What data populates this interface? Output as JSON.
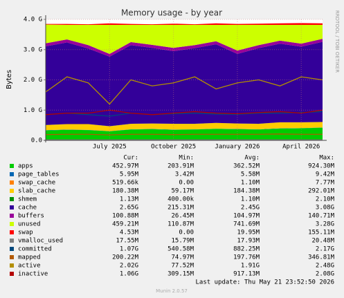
{
  "chart_data": {
    "type": "stacked-area",
    "title": "Memory usage - by year",
    "y_label": "Bytes",
    "side_text": "RRDTOOL / TOBI OETIKER",
    "x": [
      "2025-04",
      "2025-05",
      "2025-06",
      "2025-07",
      "2025-08",
      "2025-09",
      "2025-10",
      "2025-11",
      "2025-12",
      "2026-01",
      "2026-02",
      "2026-03",
      "2026-04",
      "2026-05"
    ],
    "xlim": [
      "2025-04",
      "2026-05"
    ],
    "xticks": [
      {
        "value": "2025-07",
        "label": "July 2025"
      },
      {
        "value": "2025-10",
        "label": "October 2025"
      },
      {
        "value": "2026-01",
        "label": "January 2026"
      },
      {
        "value": "2026-04",
        "label": "April 2026"
      }
    ],
    "ylim": [
      0,
      4
    ],
    "yticks": [
      {
        "value": 0,
        "label": "0.0"
      },
      {
        "value": 1,
        "label": "1.0 G"
      },
      {
        "value": 2,
        "label": "2.0 G"
      },
      {
        "value": 3,
        "label": "3.0 G"
      },
      {
        "value": 4,
        "label": "4.0 G"
      }
    ],
    "grid": true,
    "stats_headers": [
      "Cur:",
      "Min:",
      "Avg:",
      "Max:"
    ],
    "series": [
      {
        "name": "apps",
        "kind": "area",
        "color": "#00cc00",
        "values": [
          0.33,
          0.35,
          0.34,
          0.3,
          0.36,
          0.37,
          0.35,
          0.36,
          0.38,
          0.37,
          0.36,
          0.39,
          0.4,
          0.42
        ],
        "stats": [
          "452.97M",
          "203.91M",
          "362.52M",
          "924.30M"
        ]
      },
      {
        "name": "page_tables",
        "kind": "area",
        "color": "#0066b3",
        "values": [
          0.006,
          0.006,
          0.006,
          0.006,
          0.006,
          0.006,
          0.006,
          0.006,
          0.006,
          0.006,
          0.006,
          0.006,
          0.006,
          0.006
        ],
        "stats": [
          "5.95M",
          "3.42M",
          "5.58M",
          "9.42M"
        ]
      },
      {
        "name": "swap_cache",
        "kind": "area",
        "color": "#ff8000",
        "values": [
          0.001,
          0.001,
          0.001,
          0.001,
          0.001,
          0.001,
          0.001,
          0.001,
          0.001,
          0.001,
          0.001,
          0.001,
          0.001,
          0.001
        ],
        "stats": [
          "519.66k",
          "0.00",
          "1.10M",
          "7.77M"
        ]
      },
      {
        "name": "slab_cache",
        "kind": "area",
        "color": "#ffcc00",
        "values": [
          0.17,
          0.18,
          0.19,
          0.16,
          0.18,
          0.18,
          0.19,
          0.18,
          0.19,
          0.18,
          0.18,
          0.2,
          0.19,
          0.18
        ],
        "stats": [
          "180.38M",
          "59.17M",
          "184.38M",
          "292.01M"
        ]
      },
      {
        "name": "shmem",
        "kind": "area",
        "color": "#008f00",
        "values": [
          0.001,
          0.001,
          0.001,
          0.001,
          0.001,
          0.001,
          0.001,
          0.001,
          0.001,
          0.001,
          0.001,
          0.001,
          0.001,
          0.001
        ],
        "stats": [
          "1.13M",
          "400.00k",
          "1.10M",
          "2.10M"
        ]
      },
      {
        "name": "cache",
        "kind": "area",
        "color": "#330099",
        "values": [
          2.6,
          2.7,
          2.5,
          2.3,
          2.6,
          2.5,
          2.4,
          2.5,
          2.6,
          2.3,
          2.5,
          2.6,
          2.5,
          2.65
        ],
        "stats": [
          "2.65G",
          "215.31M",
          "2.45G",
          "3.08G"
        ]
      },
      {
        "name": "buffers",
        "kind": "area",
        "color": "#990099",
        "values": [
          0.1,
          0.1,
          0.11,
          0.09,
          0.1,
          0.1,
          0.11,
          0.1,
          0.1,
          0.11,
          0.1,
          0.1,
          0.1,
          0.1
        ],
        "stats": [
          "100.88M",
          "26.45M",
          "104.97M",
          "140.71M"
        ]
      },
      {
        "name": "unused",
        "kind": "area",
        "color": "#ccff00",
        "values": [
          0.62,
          0.48,
          0.67,
          0.96,
          0.57,
          0.66,
          0.76,
          0.67,
          0.54,
          0.85,
          0.67,
          0.52,
          0.62,
          0.46
        ],
        "stats": [
          "459.21M",
          "110.87M",
          "741.69M",
          "3.28G"
        ]
      },
      {
        "name": "swap",
        "kind": "area",
        "color": "#ff0000",
        "values": [
          0.02,
          0.03,
          0.02,
          0.05,
          0.03,
          0.02,
          0.04,
          0.02,
          0.05,
          0.03,
          0.04,
          0.05,
          0.06,
          0.05
        ],
        "stats": [
          "4.53M",
          "0.00",
          "19.95M",
          "155.11M"
        ]
      },
      {
        "name": "vmalloc_used",
        "kind": "line",
        "color": "#808080",
        "values": [
          0.018,
          0.018,
          0.018,
          0.018,
          0.018,
          0.018,
          0.018,
          0.018,
          0.018,
          0.018,
          0.018,
          0.018,
          0.018,
          0.018
        ],
        "stats": [
          "17.55M",
          "15.79M",
          "17.93M",
          "20.48M"
        ]
      },
      {
        "name": "committed",
        "kind": "line",
        "color": "#00487d",
        "values": [
          0.85,
          0.9,
          0.85,
          0.8,
          0.9,
          0.85,
          0.88,
          0.9,
          0.87,
          0.86,
          0.9,
          0.9,
          0.92,
          0.95
        ],
        "stats": [
          "1.07G",
          "540.58M",
          "882.25M",
          "2.17G"
        ]
      },
      {
        "name": "mapped",
        "kind": "line",
        "color": "#b35a00",
        "values": [
          0.19,
          0.2,
          0.2,
          0.18,
          0.2,
          0.2,
          0.19,
          0.2,
          0.2,
          0.2,
          0.2,
          0.21,
          0.2,
          0.2
        ],
        "stats": [
          "200.22M",
          "74.97M",
          "197.76M",
          "346.81M"
        ]
      },
      {
        "name": "active",
        "kind": "line",
        "color": "#b38f00",
        "values": [
          1.6,
          2.1,
          1.9,
          1.2,
          2.0,
          1.8,
          1.9,
          2.1,
          1.7,
          1.9,
          2.0,
          1.8,
          2.1,
          2.0
        ],
        "stats": [
          "2.02G",
          "77.52M",
          "1.91G",
          "2.48G"
        ]
      },
      {
        "name": "inactive",
        "kind": "line",
        "color": "#b30000",
        "values": [
          0.85,
          0.9,
          0.9,
          1.0,
          0.9,
          0.85,
          0.9,
          0.95,
          0.9,
          0.88,
          0.92,
          0.95,
          0.9,
          1.0
        ],
        "stats": [
          "1.06G",
          "309.15M",
          "917.13M",
          "2.08G"
        ]
      }
    ],
    "last_update": "Last update: Thu May 21 23:52:50 2026",
    "footer": "Munin 2.0.57"
  }
}
